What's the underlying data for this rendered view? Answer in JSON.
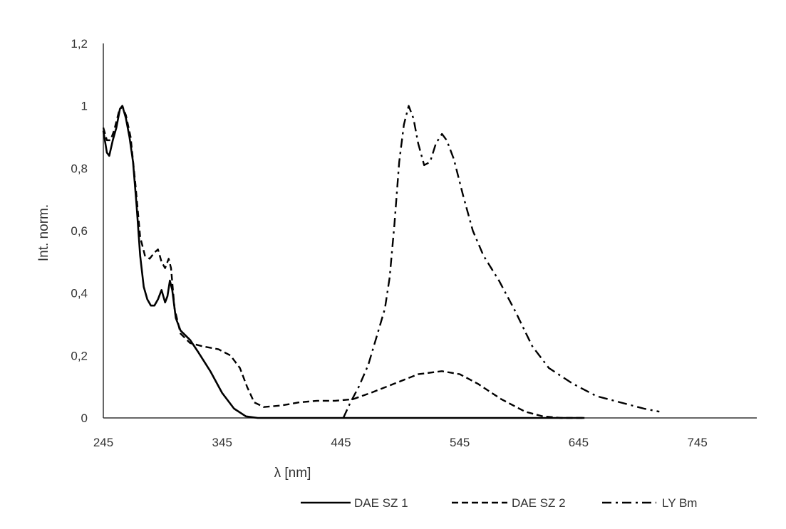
{
  "chart_data": {
    "type": "line",
    "title": "",
    "xlabel": "λ [nm]",
    "ylabel": "Int. norm.",
    "xlim": [
      245,
      795
    ],
    "ylim": [
      0,
      1.2
    ],
    "x_ticks": [
      245,
      345,
      445,
      545,
      645,
      745
    ],
    "x_tick_labels": [
      "245",
      "345",
      "445",
      "545",
      "645",
      "745"
    ],
    "y_ticks": [
      0,
      0.2,
      0.4,
      0.6,
      0.8,
      1,
      1.2
    ],
    "y_tick_labels": [
      "0",
      "0,2",
      "0,4",
      "0,6",
      "0,8",
      "1",
      "1,2"
    ],
    "grid": false,
    "legend_position": "bottom",
    "colors": {
      "line": "#000000",
      "axis": "#333333",
      "text": "#333333"
    },
    "series": [
      {
        "name": "DAE SZ 1",
        "style": "solid",
        "points": [
          [
            245,
            0.92
          ],
          [
            248,
            0.85
          ],
          [
            250,
            0.84
          ],
          [
            253,
            0.89
          ],
          [
            256,
            0.93
          ],
          [
            259,
            0.99
          ],
          [
            261,
            1.0
          ],
          [
            264,
            0.96
          ],
          [
            267,
            0.9
          ],
          [
            270,
            0.82
          ],
          [
            273,
            0.68
          ],
          [
            276,
            0.52
          ],
          [
            279,
            0.42
          ],
          [
            282,
            0.38
          ],
          [
            285,
            0.36
          ],
          [
            288,
            0.36
          ],
          [
            291,
            0.38
          ],
          [
            294,
            0.41
          ],
          [
            297,
            0.37
          ],
          [
            299,
            0.39
          ],
          [
            301,
            0.44
          ],
          [
            303,
            0.41
          ],
          [
            306,
            0.32
          ],
          [
            310,
            0.28
          ],
          [
            318,
            0.25
          ],
          [
            325,
            0.21
          ],
          [
            335,
            0.15
          ],
          [
            345,
            0.08
          ],
          [
            355,
            0.03
          ],
          [
            365,
            0.005
          ],
          [
            375,
            0.0
          ],
          [
            450,
            0.0
          ],
          [
            550,
            0.0
          ],
          [
            650,
            0.0
          ]
        ]
      },
      {
        "name": "DAE SZ 2",
        "style": "dashed",
        "points": [
          [
            245,
            0.93
          ],
          [
            248,
            0.89
          ],
          [
            251,
            0.89
          ],
          [
            254,
            0.92
          ],
          [
            258,
            0.98
          ],
          [
            261,
            1.0
          ],
          [
            264,
            0.97
          ],
          [
            268,
            0.9
          ],
          [
            272,
            0.75
          ],
          [
            276,
            0.58
          ],
          [
            280,
            0.52
          ],
          [
            284,
            0.51
          ],
          [
            288,
            0.53
          ],
          [
            291,
            0.54
          ],
          [
            294,
            0.5
          ],
          [
            297,
            0.48
          ],
          [
            300,
            0.51
          ],
          [
            302,
            0.48
          ],
          [
            305,
            0.35
          ],
          [
            310,
            0.27
          ],
          [
            318,
            0.24
          ],
          [
            328,
            0.23
          ],
          [
            342,
            0.22
          ],
          [
            352,
            0.2
          ],
          [
            360,
            0.16
          ],
          [
            366,
            0.1
          ],
          [
            372,
            0.05
          ],
          [
            380,
            0.035
          ],
          [
            395,
            0.04
          ],
          [
            410,
            0.05
          ],
          [
            425,
            0.055
          ],
          [
            440,
            0.055
          ],
          [
            455,
            0.06
          ],
          [
            470,
            0.08
          ],
          [
            490,
            0.11
          ],
          [
            510,
            0.14
          ],
          [
            530,
            0.15
          ],
          [
            545,
            0.14
          ],
          [
            560,
            0.11
          ],
          [
            580,
            0.06
          ],
          [
            600,
            0.02
          ],
          [
            615,
            0.005
          ],
          [
            630,
            0.0
          ],
          [
            650,
            0.0
          ]
        ]
      },
      {
        "name": "LY Bm",
        "style": "dashdot",
        "points": [
          [
            447,
            0.0
          ],
          [
            453,
            0.05
          ],
          [
            460,
            0.1
          ],
          [
            468,
            0.17
          ],
          [
            475,
            0.26
          ],
          [
            482,
            0.35
          ],
          [
            486,
            0.45
          ],
          [
            490,
            0.62
          ],
          [
            494,
            0.82
          ],
          [
            498,
            0.94
          ],
          [
            502,
            1.0
          ],
          [
            506,
            0.96
          ],
          [
            510,
            0.88
          ],
          [
            515,
            0.81
          ],
          [
            520,
            0.82
          ],
          [
            525,
            0.88
          ],
          [
            530,
            0.91
          ],
          [
            534,
            0.89
          ],
          [
            540,
            0.83
          ],
          [
            548,
            0.71
          ],
          [
            556,
            0.6
          ],
          [
            565,
            0.52
          ],
          [
            578,
            0.44
          ],
          [
            592,
            0.34
          ],
          [
            606,
            0.23
          ],
          [
            620,
            0.16
          ],
          [
            640,
            0.11
          ],
          [
            660,
            0.07
          ],
          [
            680,
            0.05
          ],
          [
            700,
            0.03
          ],
          [
            713,
            0.02
          ]
        ]
      }
    ]
  }
}
